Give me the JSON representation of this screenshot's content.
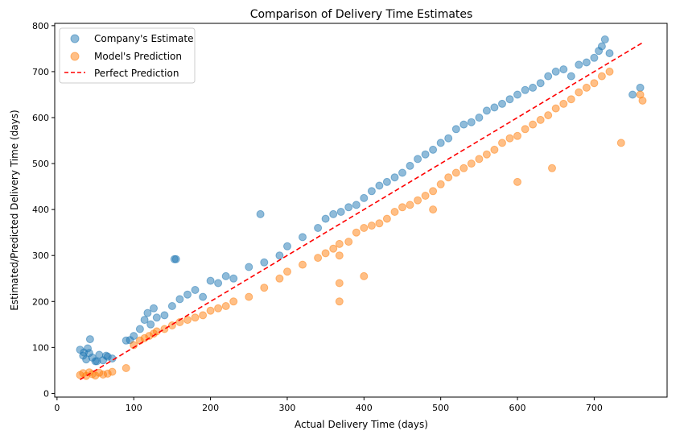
{
  "chart_data": {
    "type": "scatter",
    "title": "Comparison of Delivery Time Estimates",
    "xlabel": "Actual Delivery Time (days)",
    "ylabel": "Estimated/Predicted Delivery Time (days)",
    "xlim": [
      -3,
      795
    ],
    "ylim": [
      -8,
      805
    ],
    "xticks": [
      0,
      100,
      200,
      300,
      400,
      500,
      600,
      700
    ],
    "yticks": [
      0,
      100,
      200,
      300,
      400,
      500,
      600,
      700,
      800
    ],
    "grid": false,
    "legend_position": "top-left",
    "series": [
      {
        "name": "Company's Estimate",
        "color": "#1f77b4",
        "marker": "circle",
        "x": [
          30,
          34,
          38,
          42,
          46,
          50,
          55,
          60,
          66,
          72,
          90,
          100,
          108,
          114,
          118,
          122,
          126,
          130,
          140,
          150,
          153,
          160,
          170,
          180,
          190,
          200,
          210,
          220,
          230,
          250,
          265,
          270,
          290,
          300,
          320,
          340,
          350,
          360,
          370,
          380,
          390,
          400,
          410,
          420,
          430,
          440,
          450,
          460,
          470,
          480,
          490,
          500,
          510,
          520,
          530,
          540,
          550,
          560,
          570,
          580,
          590,
          600,
          610,
          620,
          630,
          640,
          650,
          660,
          670,
          680,
          690,
          700,
          706,
          710,
          714,
          720,
          750,
          760,
          43,
          155,
          95,
          40,
          35,
          52,
          64
        ],
        "y": [
          95,
          82,
          74,
          88,
          78,
          70,
          84,
          72,
          80,
          76,
          115,
          125,
          140,
          160,
          175,
          150,
          185,
          165,
          170,
          190,
          292,
          205,
          215,
          225,
          210,
          245,
          240,
          255,
          250,
          275,
          390,
          285,
          300,
          320,
          340,
          360,
          380,
          390,
          395,
          405,
          410,
          425,
          440,
          452,
          460,
          470,
          480,
          495,
          510,
          520,
          530,
          545,
          555,
          575,
          585,
          590,
          600,
          615,
          622,
          630,
          640,
          650,
          660,
          665,
          675,
          690,
          700,
          705,
          690,
          715,
          720,
          730,
          745,
          755,
          770,
          740,
          650,
          665,
          118,
          292,
          116,
          98,
          89,
          70,
          82
        ]
      },
      {
        "name": "Model's Prediction",
        "color": "#ff7f0e",
        "marker": "circle",
        "x": [
          30,
          34,
          38,
          42,
          46,
          50,
          55,
          60,
          66,
          72,
          90,
          100,
          108,
          114,
          120,
          126,
          130,
          140,
          150,
          160,
          170,
          180,
          190,
          200,
          210,
          220,
          230,
          250,
          270,
          290,
          300,
          320,
          340,
          350,
          360,
          368,
          368,
          368,
          368,
          380,
          390,
          400,
          410,
          420,
          430,
          440,
          450,
          460,
          470,
          480,
          490,
          500,
          510,
          520,
          530,
          540,
          550,
          560,
          570,
          580,
          590,
          600,
          610,
          620,
          630,
          640,
          650,
          660,
          670,
          680,
          690,
          700,
          710,
          720,
          735,
          760,
          763,
          400,
          490,
          600,
          645
        ],
        "y": [
          40,
          44,
          38,
          46,
          42,
          39,
          45,
          41,
          43,
          47,
          55,
          105,
          115,
          120,
          125,
          130,
          135,
          140,
          148,
          155,
          160,
          165,
          170,
          180,
          185,
          190,
          200,
          210,
          230,
          250,
          265,
          280,
          295,
          305,
          315,
          325,
          300,
          240,
          200,
          330,
          350,
          360,
          365,
          370,
          380,
          395,
          405,
          410,
          420,
          430,
          440,
          455,
          470,
          480,
          490,
          500,
          510,
          520,
          530,
          545,
          555,
          560,
          575,
          585,
          595,
          605,
          620,
          630,
          640,
          655,
          665,
          675,
          690,
          700,
          545,
          650,
          637,
          255,
          400,
          460,
          490
        ]
      }
    ],
    "reference_line": {
      "name": "Perfect Prediction",
      "color": "#ff0000",
      "style": "dashed",
      "x": [
        30,
        763
      ],
      "y": [
        30,
        763
      ]
    }
  }
}
